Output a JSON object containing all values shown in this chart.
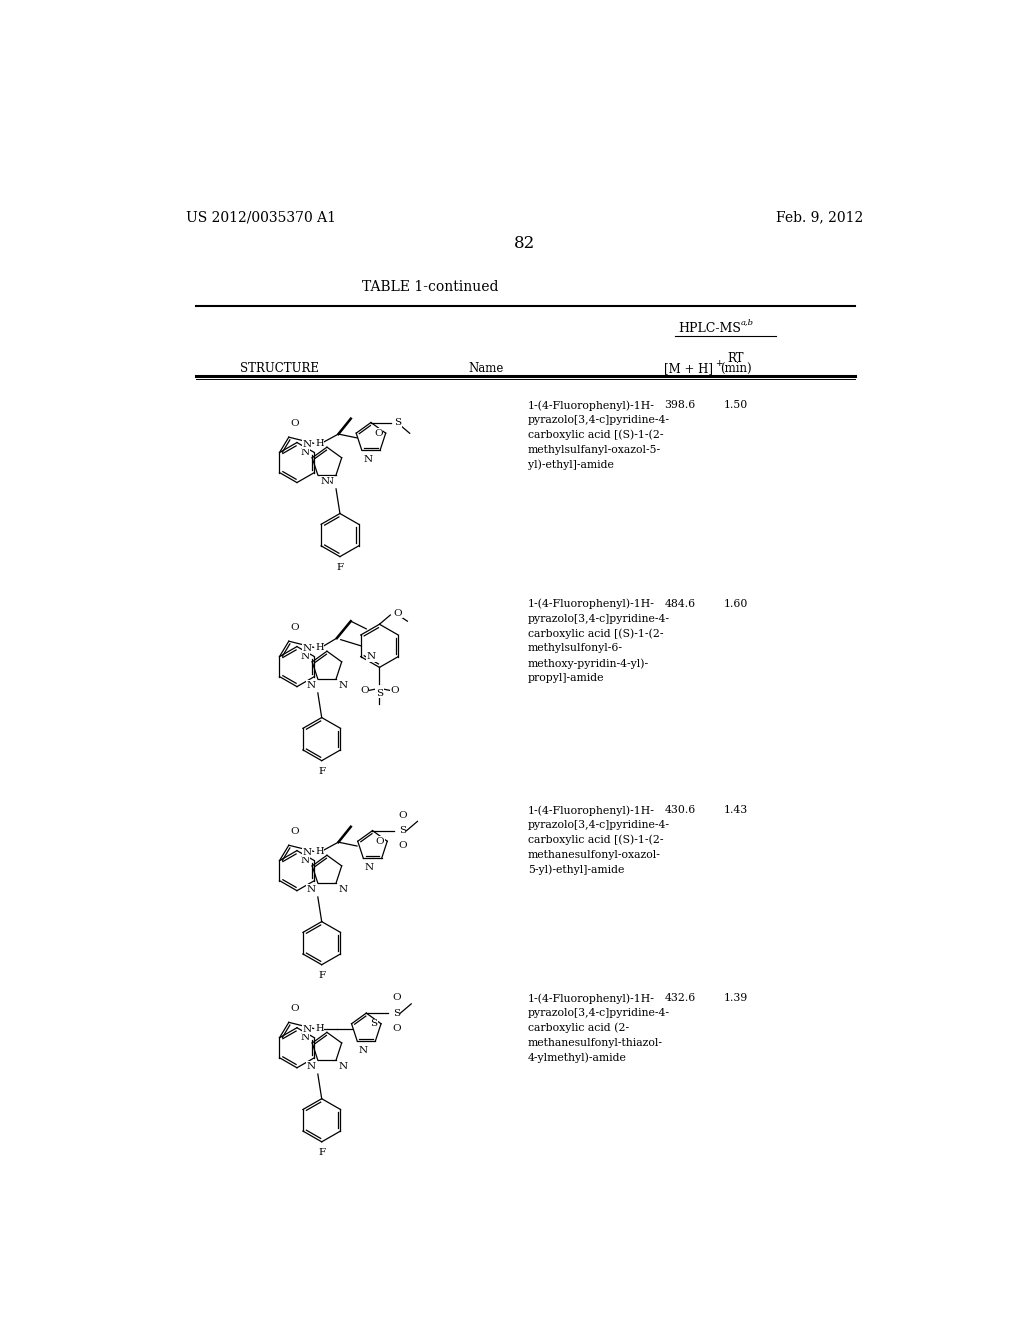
{
  "bg": "#ffffff",
  "header_left": "US 2012/0035370 A1",
  "header_right": "Feb. 9, 2012",
  "page_num": "82",
  "table_title": "TABLE 1-continued",
  "rows": [
    {
      "name": "1-(4-Fluorophenyl)-1H-\npyrazolo[3,4-c]pyridine-4-\ncarboxylic acid [(S)-1-(2-\nmethylsulfanyl-oxazol-5-\nyl)-ethyl]-amide",
      "mz": "398.6",
      "rt": "1.50"
    },
    {
      "name": "1-(4-Fluorophenyl)-1H-\npyrazolo[3,4-c]pyridine-4-\ncarboxylic acid [(S)-1-(2-\nmethylsulfonyl-6-\nmethoxy-pyridin-4-yl)-\npropyl]-amide",
      "mz": "484.6",
      "rt": "1.60"
    },
    {
      "name": "1-(4-Fluorophenyl)-1H-\npyrazolo[3,4-c]pyridine-4-\ncarboxylic acid [(S)-1-(2-\nmethanesulfonyl-oxazol-\n5-yl)-ethyl]-amide",
      "mz": "430.6",
      "rt": "1.43"
    },
    {
      "name": "1-(4-Fluorophenyl)-1H-\npyrazolo[3,4-c]pyridine-4-\ncarboxylic acid (2-\nmethanesulfonyl-thiazol-\n4-ylmethyl)-amide",
      "mz": "432.6",
      "rt": "1.39"
    }
  ]
}
